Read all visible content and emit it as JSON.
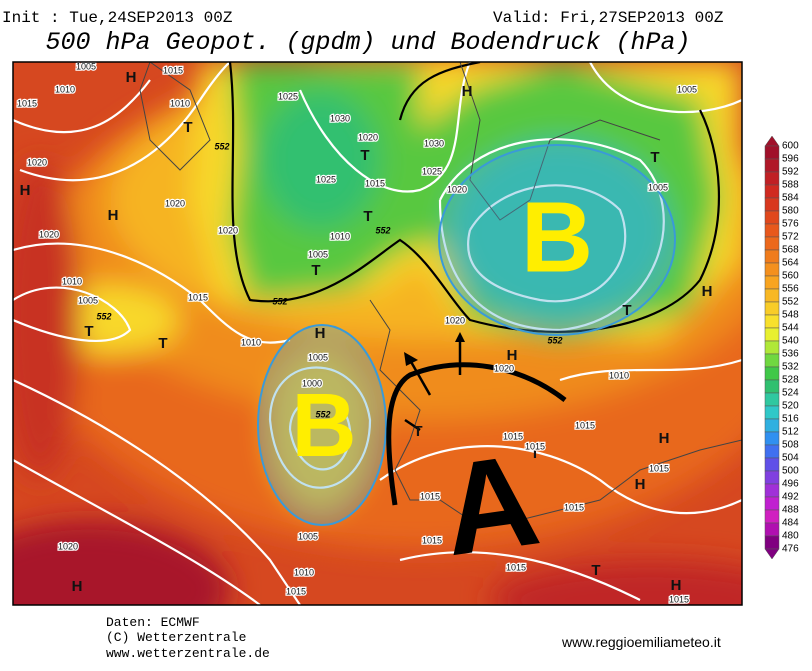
{
  "header": {
    "init": "Init : Tue,24SEP2013 00Z",
    "valid": "Valid: Fri,27SEP2013 00Z",
    "title": "500 hPa Geopot. (gpdm) und Bodendruck (hPa)"
  },
  "colorbar": {
    "labels": [
      600,
      596,
      592,
      588,
      584,
      580,
      576,
      572,
      568,
      564,
      560,
      556,
      552,
      548,
      544,
      540,
      536,
      532,
      528,
      524,
      520,
      516,
      512,
      508,
      504,
      500,
      496,
      492,
      488,
      484,
      480,
      476
    ],
    "colors": [
      "#a0102a",
      "#b01828",
      "#c02024",
      "#d02a20",
      "#d8381e",
      "#e0481c",
      "#e8581c",
      "#ec681c",
      "#f07c1c",
      "#f4901e",
      "#f8a420",
      "#f8b824",
      "#f8cc28",
      "#f8e02c",
      "#e8f030",
      "#b0e838",
      "#70d840",
      "#40c848",
      "#30c070",
      "#30c8a0",
      "#30c8c8",
      "#30b0e0",
      "#3090f0",
      "#4070f0",
      "#6050e8",
      "#8040e0",
      "#a030d8",
      "#c020d0",
      "#d020c0",
      "#b010b0",
      "#800080"
    ]
  },
  "map": {
    "centers": [
      "H",
      "H",
      "H",
      "H",
      "H",
      "H",
      "H",
      "H",
      "H",
      "H",
      "H",
      "T",
      "T",
      "T",
      "T",
      "T",
      "T",
      "T",
      "T",
      "T",
      "T",
      "T"
    ],
    "isobar_labels": [
      "1005",
      "1015",
      "1010",
      "1025",
      "1030",
      "1020",
      "1015",
      "1025",
      "1030",
      "1025",
      "1020",
      "1005",
      "1005",
      "1020",
      "1020",
      "1020",
      "1020",
      "1010",
      "1005",
      "1015",
      "1010",
      "1005",
      "1010",
      "1015",
      "1010",
      "1020",
      "1005",
      "1000",
      "1005",
      "1010",
      "1015",
      "1015",
      "1015",
      "1015",
      "1015",
      "1015",
      "1015",
      "1010",
      "1015",
      "1020",
      "1015",
      "1015",
      "1020"
    ],
    "height_labels": [
      "552",
      "552",
      "552",
      "552",
      "552",
      "552"
    ],
    "features": [
      "B",
      "B",
      "A"
    ]
  },
  "footer": {
    "data": "Daten: ECMWF",
    "copyright": "(C) Wetterzentrale",
    "url": "www.wetterzentrale.de",
    "site": "www.reggioemiliameteo.it"
  }
}
